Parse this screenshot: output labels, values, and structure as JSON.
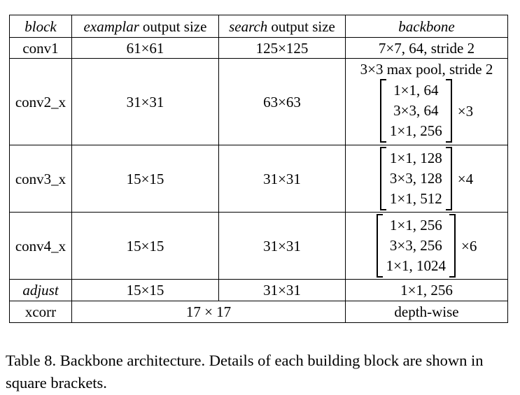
{
  "table": {
    "headers": {
      "block": "block",
      "exemplar_em": "examplar",
      "exemplar_rest": "output size",
      "search_em": "search",
      "search_rest": "output size",
      "backbone": "backbone"
    },
    "rows": {
      "conv1": {
        "block": "conv1",
        "exemplar": "61×61",
        "search": "125×125",
        "backbone": "7×7, 64, stride 2"
      },
      "conv2": {
        "block": "conv2_x",
        "exemplar": "31×31",
        "search": "63×63",
        "pool": "3×3 max pool, stride 2",
        "lines": [
          "1×1, 64",
          "3×3, 64",
          "1×1, 256"
        ],
        "mult": "×3"
      },
      "conv3": {
        "block": "conv3_x",
        "exemplar": "15×15",
        "search": "31×31",
        "lines": [
          "1×1, 128",
          "3×3, 128",
          "1×1, 512"
        ],
        "mult": "×4"
      },
      "conv4": {
        "block": "conv4_x",
        "exemplar": "15×15",
        "search": "31×31",
        "lines": [
          "1×1, 256",
          "3×3, 256",
          "1×1, 1024"
        ],
        "mult": "×6"
      },
      "adjust": {
        "block": "adjust",
        "exemplar": "15×15",
        "search": "31×31",
        "backbone": "1×1, 256"
      },
      "xcorr": {
        "block": "xcorr",
        "output": "17 × 17",
        "backbone": "depth-wise"
      }
    }
  },
  "caption": "Table 8. Backbone architecture. Details of each building block are shown in square brackets."
}
